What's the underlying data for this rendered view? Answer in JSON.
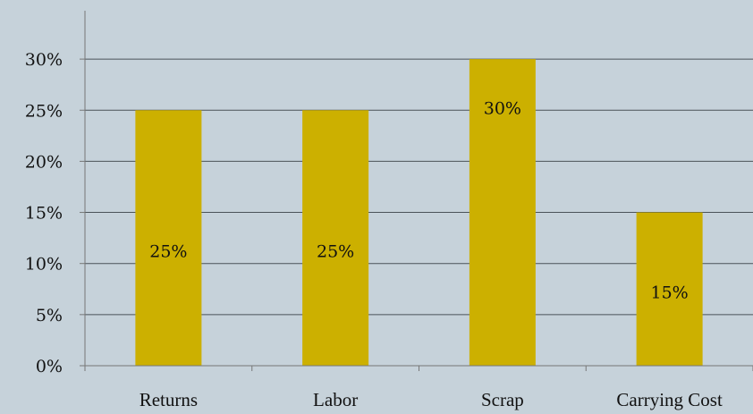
{
  "chart_data": {
    "type": "bar",
    "categories": [
      "Returns",
      "Labor",
      "Scrap",
      "Carrying Cost"
    ],
    "values": [
      25,
      25,
      30,
      15
    ],
    "value_labels": [
      "25%",
      "25%",
      "30%",
      "15%"
    ],
    "yticks": [
      {
        "value": 0,
        "label": "0%"
      },
      {
        "value": 5,
        "label": "5%"
      },
      {
        "value": 10,
        "label": "10%"
      },
      {
        "value": 15,
        "label": "15%"
      },
      {
        "value": 20,
        "label": "20%"
      },
      {
        "value": 25,
        "label": "25%"
      },
      {
        "value": 30,
        "label": "30%"
      }
    ],
    "ylim": [
      0,
      35
    ],
    "grid": true,
    "legend": "none",
    "title": "",
    "xlabel": "",
    "ylabel": "",
    "colors": {
      "bar": "#ccb000",
      "grid": "#4a5358",
      "background": "#c6d2da",
      "axis": "#777777"
    }
  }
}
